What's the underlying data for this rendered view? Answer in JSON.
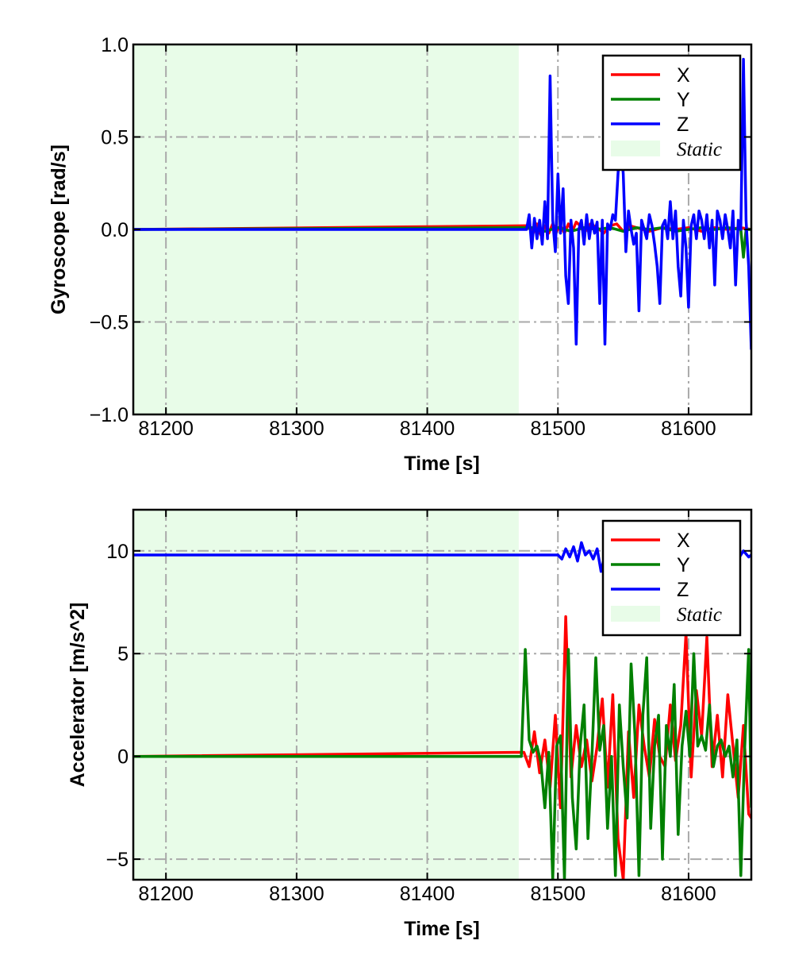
{
  "chart_data": [
    {
      "type": "line",
      "xlabel": "Time [s]",
      "ylabel": "Gyroscope [rad/s]",
      "xlim": [
        81175,
        81648
      ],
      "ylim": [
        -1.0,
        1.0
      ],
      "xticks": [
        81200,
        81300,
        81400,
        81500,
        81600
      ],
      "xtick_labels": [
        "81200",
        "81300",
        "81400",
        "81500",
        "81600"
      ],
      "yticks": [
        -1.0,
        -0.5,
        0.0,
        0.5,
        1.0
      ],
      "ytick_labels": [
        "−1.0",
        "−0.5",
        "0.0",
        "0.5",
        "1.0"
      ],
      "grid": true,
      "legend_position": "top-right",
      "static_region": {
        "label": "Static",
        "x_start": 81175,
        "x_end": 81470,
        "color": "#e8fce8"
      },
      "series": [
        {
          "name": "X",
          "color": "#ff0000",
          "x": [
            81175,
            81478,
            81481,
            81484,
            81487,
            81490,
            81493,
            81496,
            81499,
            81502,
            81505,
            81508,
            81511,
            81514,
            81517,
            81520,
            81525,
            81530,
            81535,
            81540,
            81545,
            81550,
            81555,
            81560,
            81570,
            81580,
            81590,
            81600,
            81610,
            81620,
            81630,
            81640,
            81648
          ],
          "values": [
            0,
            0.02,
            -0.02,
            0.03,
            -0.03,
            0.02,
            -0.02,
            0.03,
            -0.01,
            0.02,
            -0.02,
            0.03,
            -0.01,
            0.04,
            0.02,
            -0.02,
            0.03,
            0.01,
            -0.02,
            0.02,
            0.03,
            -0.01,
            0.02,
            0.01,
            -0.01,
            0.01,
            0.0,
            0.01,
            -0.01,
            0.01,
            0.0,
            0.01,
            0.0
          ]
        },
        {
          "name": "Y",
          "color": "#008000",
          "x": [
            81175,
            81480,
            81490,
            81500,
            81510,
            81520,
            81530,
            81540,
            81550,
            81560,
            81570,
            81580,
            81590,
            81600,
            81610,
            81620,
            81630,
            81640,
            81642,
            81644,
            81648
          ],
          "values": [
            0,
            0.01,
            -0.01,
            0.01,
            -0.01,
            0.01,
            0.0,
            0.01,
            -0.01,
            0.01,
            0.0,
            0.01,
            -0.01,
            0.0,
            0.01,
            0.0,
            0.01,
            0.0,
            -0.15,
            0.0,
            0.0
          ]
        },
        {
          "name": "Z",
          "color": "#0000ff",
          "x": [
            81175,
            81476,
            81478,
            81480,
            81482,
            81484,
            81486,
            81488,
            81490,
            81492,
            81494,
            81496,
            81498,
            81500,
            81502,
            81504,
            81506,
            81508,
            81510,
            81512,
            81514,
            81516,
            81518,
            81520,
            81522,
            81524,
            81526,
            81528,
            81530,
            81532,
            81534,
            81536,
            81538,
            81540,
            81542,
            81544,
            81546,
            81548,
            81550,
            81552,
            81554,
            81556,
            81558,
            81560,
            81562,
            81564,
            81566,
            81568,
            81570,
            81572,
            81574,
            81576,
            81578,
            81580,
            81582,
            81584,
            81586,
            81588,
            81590,
            81592,
            81594,
            81596,
            81598,
            81600,
            81602,
            81604,
            81606,
            81608,
            81610,
            81612,
            81614,
            81616,
            81618,
            81620,
            81622,
            81624,
            81626,
            81628,
            81630,
            81632,
            81634,
            81636,
            81638,
            81640,
            81642,
            81644,
            81646,
            81648
          ],
          "values": [
            0,
            0,
            0.08,
            -0.1,
            0.06,
            -0.05,
            0.05,
            -0.08,
            0.15,
            -0.05,
            0.83,
            0.05,
            -0.12,
            0.3,
            -0.02,
            0.22,
            -0.25,
            -0.4,
            0.05,
            -0.1,
            -0.62,
            0.0,
            0.05,
            -0.08,
            0.08,
            -0.05,
            0.05,
            -0.02,
            0.04,
            -0.4,
            0.05,
            -0.62,
            0.03,
            0.0,
            0.08,
            0.05,
            0.3,
            0.5,
            0.3,
            -0.12,
            0.1,
            0.0,
            -0.08,
            -0.02,
            -0.44,
            0.05,
            0.0,
            -0.05,
            0.08,
            0.02,
            -0.08,
            -0.2,
            -0.4,
            0.02,
            0.05,
            -0.05,
            0.15,
            -0.05,
            0.1,
            -0.2,
            -0.36,
            0.05,
            -0.1,
            -0.42,
            0.02,
            0.08,
            -0.05,
            0.1,
            0.05,
            -0.05,
            0.08,
            -0.1,
            0.05,
            -0.3,
            0.1,
            0.05,
            -0.05,
            0.08,
            0.0,
            -0.1,
            0.1,
            -0.3,
            0.05,
            0.0,
            0.92,
            0.05,
            -0.2,
            -0.65
          ]
        }
      ]
    },
    {
      "type": "line",
      "xlabel": "Time [s]",
      "ylabel": "Accelerator [m/s^2]",
      "xlim": [
        81175,
        81648
      ],
      "ylim": [
        -6.0,
        12.0
      ],
      "xticks": [
        81200,
        81300,
        81400,
        81500,
        81600
      ],
      "xtick_labels": [
        "81200",
        "81300",
        "81400",
        "81500",
        "81600"
      ],
      "yticks": [
        -5,
        0,
        5,
        10
      ],
      "ytick_labels": [
        "−5",
        "0",
        "5",
        "10"
      ],
      "grid": true,
      "legend_position": "top-right",
      "static_region": {
        "label": "Static",
        "x_start": 81175,
        "x_end": 81470,
        "color": "#e8fce8"
      },
      "series": [
        {
          "name": "X",
          "color": "#ff0000",
          "x": [
            81175,
            81474,
            81478,
            81482,
            81486,
            81490,
            81494,
            81498,
            81502,
            81506,
            81510,
            81514,
            81518,
            81522,
            81526,
            81530,
            81534,
            81538,
            81542,
            81546,
            81550,
            81554,
            81558,
            81562,
            81566,
            81570,
            81574,
            81578,
            81582,
            81586,
            81590,
            81594,
            81598,
            81602,
            81606,
            81610,
            81614,
            81618,
            81622,
            81626,
            81630,
            81634,
            81638,
            81642,
            81646,
            81648
          ],
          "values": [
            0,
            0.2,
            -0.5,
            1.2,
            -0.8,
            0.8,
            -1.5,
            2.0,
            -2.5,
            6.8,
            -1.0,
            1.5,
            -0.5,
            0.8,
            -1.2,
            0.5,
            2.8,
            -1.5,
            3.0,
            -4.0,
            -6.0,
            1.2,
            -2.0,
            2.5,
            0.5,
            -1.0,
            1.8,
            0.0,
            -0.5,
            2.5,
            -0.2,
            1.5,
            6.0,
            -1.0,
            3.2,
            1.0,
            5.8,
            -0.5,
            2.0,
            -1.0,
            3.0,
            0.5,
            -2.0,
            1.5,
            -2.8,
            -3.0
          ]
        },
        {
          "name": "Y",
          "color": "#008000",
          "x": [
            81175,
            81472,
            81475,
            81478,
            81481,
            81484,
            81487,
            81490,
            81493,
            81496,
            81499,
            81502,
            81505,
            81508,
            81511,
            81514,
            81517,
            81520,
            81523,
            81526,
            81529,
            81532,
            81535,
            81538,
            81541,
            81544,
            81547,
            81550,
            81553,
            81556,
            81559,
            81562,
            81565,
            81568,
            81571,
            81574,
            81577,
            81580,
            81583,
            81586,
            81589,
            81592,
            81595,
            81598,
            81601,
            81604,
            81607,
            81610,
            81613,
            81616,
            81619,
            81622,
            81625,
            81628,
            81631,
            81634,
            81637,
            81640,
            81643,
            81646,
            81648
          ],
          "values": [
            0,
            0.0,
            5.2,
            0.8,
            0.2,
            0.5,
            -0.3,
            -2.5,
            0.2,
            -6.0,
            0.5,
            1.0,
            -6.0,
            5.2,
            -2.0,
            -4.5,
            0.5,
            2.5,
            -4.0,
            0.0,
            4.8,
            0.3,
            1.5,
            -3.5,
            0.0,
            -5.8,
            2.5,
            -0.5,
            -3.0,
            4.5,
            1.0,
            -5.8,
            2.0,
            4.8,
            -3.5,
            0.5,
            2.0,
            -5.0,
            1.5,
            0.0,
            3.5,
            -3.8,
            0.5,
            2.2,
            0.0,
            5.0,
            0.5,
            1.0,
            0.3,
            2.5,
            -0.5,
            0.5,
            0.8,
            0.0,
            0.5,
            -1.0,
            0.8,
            -5.8,
            0.5,
            5.2,
            -2.5
          ]
        },
        {
          "name": "Z",
          "color": "#0000ff",
          "x": [
            81175,
            81480,
            81490,
            81500,
            81503,
            81506,
            81509,
            81512,
            81515,
            81518,
            81521,
            81524,
            81527,
            81530,
            81533,
            81536,
            81540,
            81545,
            81550,
            81560,
            81570,
            81580,
            81590,
            81600,
            81610,
            81620,
            81630,
            81634,
            81638,
            81642,
            81646,
            81648
          ],
          "values": [
            9.8,
            9.8,
            9.8,
            9.8,
            9.6,
            10.1,
            9.7,
            10.2,
            9.5,
            10.4,
            9.8,
            10.0,
            9.6,
            10.1,
            9.0,
            9.8,
            9.8,
            9.8,
            9.8,
            9.8,
            9.8,
            9.8,
            9.8,
            9.8,
            9.8,
            9.8,
            9.8,
            10.3,
            9.6,
            10.0,
            9.7,
            9.8
          ]
        }
      ]
    }
  ]
}
